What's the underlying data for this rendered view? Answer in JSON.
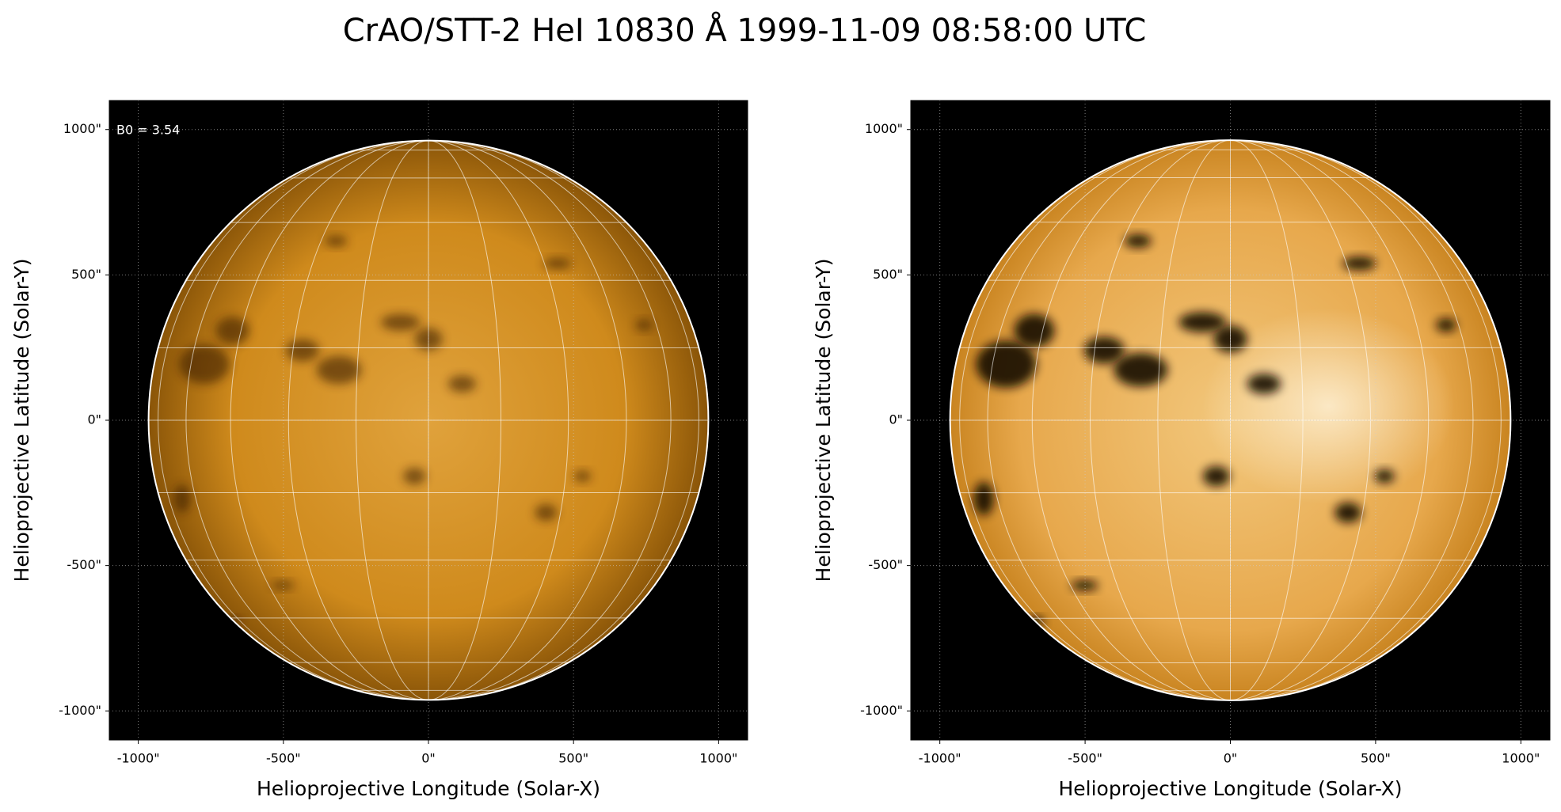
{
  "title": "CrAO/STT-2 HeI 10830 Å 1999-11-09 08:58:00 UTC",
  "chart_data": [
    {
      "type": "image",
      "xlabel": "Helioprojective Longitude (Solar-X)",
      "ylabel": "Helioprojective Latitude (Solar-Y)",
      "annotation": "B0 = 3.54",
      "grid": true,
      "xlim": [
        -1100,
        1100
      ],
      "ylim": [
        -1100,
        1100
      ],
      "xticks": [
        {
          "value": -1000,
          "label": "-1000\""
        },
        {
          "value": -500,
          "label": "-500\""
        },
        {
          "value": 0,
          "label": "0\""
        },
        {
          "value": 500,
          "label": "500\""
        },
        {
          "value": 1000,
          "label": "1000\""
        }
      ],
      "yticks": [
        {
          "value": -1000,
          "label": "-1000\""
        },
        {
          "value": -500,
          "label": "-500\""
        },
        {
          "value": 0,
          "label": "0\""
        },
        {
          "value": 500,
          "label": "500\""
        },
        {
          "value": 1000,
          "label": "1000\""
        }
      ]
    },
    {
      "type": "image",
      "xlabel": "Helioprojective Longitude (Solar-X)",
      "ylabel": "Helioprojective Latitude (Solar-Y)",
      "grid": true,
      "xlim": [
        -1100,
        1100
      ],
      "ylim": [
        -1100,
        1100
      ],
      "xticks": [
        {
          "value": -1000,
          "label": "-1000\""
        },
        {
          "value": -500,
          "label": "-500\""
        },
        {
          "value": 0,
          "label": "0\""
        },
        {
          "value": 500,
          "label": "500\""
        },
        {
          "value": 1000,
          "label": "1000\""
        }
      ],
      "yticks": [
        {
          "value": -1000,
          "label": "-1000\""
        },
        {
          "value": -500,
          "label": "-500\""
        },
        {
          "value": 0,
          "label": "0\""
        },
        {
          "value": 500,
          "label": "500\""
        },
        {
          "value": 1000,
          "label": "1000\""
        }
      ]
    }
  ]
}
